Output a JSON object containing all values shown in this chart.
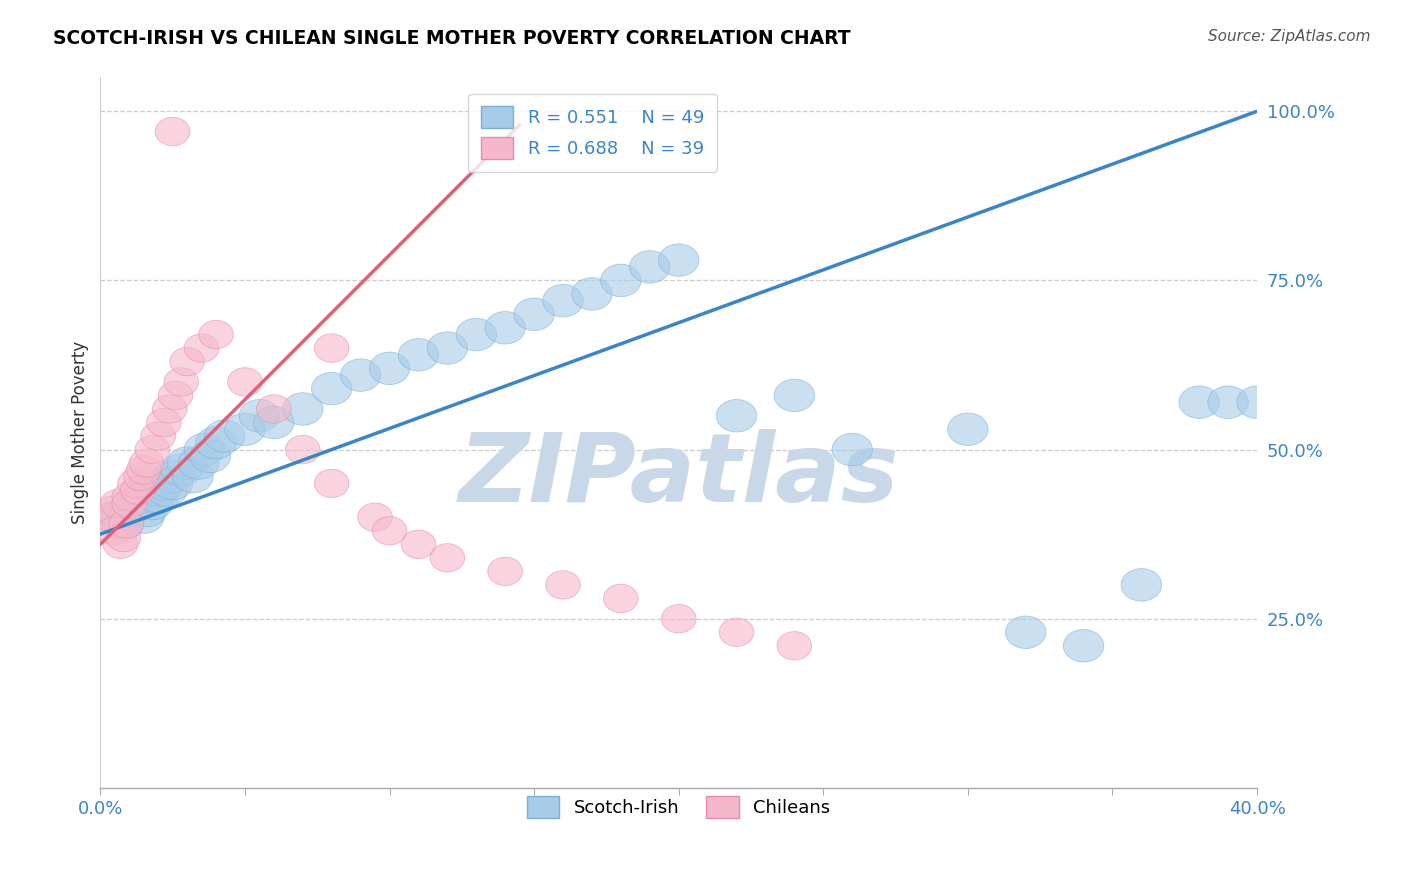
{
  "title": "SCOTCH-IRISH VS CHILEAN SINGLE MOTHER POVERTY CORRELATION CHART",
  "source": "Source: ZipAtlas.com",
  "ylabel": "Single Mother Poverty",
  "y_tick_labels": [
    "100.0%",
    "75.0%",
    "50.0%",
    "25.0%"
  ],
  "y_tick_positions": [
    1.0,
    0.75,
    0.5,
    0.25
  ],
  "legend_blue_r": "0.551",
  "legend_blue_n": "49",
  "legend_pink_r": "0.688",
  "legend_pink_n": "39",
  "blue_fill_color": "#a8cce8",
  "blue_edge_color": "#7ab0d8",
  "pink_fill_color": "#f5b8cb",
  "pink_edge_color": "#e88aa8",
  "blue_line_color": "#3a85c8",
  "pink_line_color": "#e0607a",
  "legend_color": "#3a85c8",
  "watermark_text": "ZIPatlas",
  "watermark_color": "#c8d8e8",
  "blue_line_x": [
    0.0,
    0.4
  ],
  "blue_line_y": [
    0.375,
    1.0
  ],
  "pink_line_x": [
    0.0,
    0.145
  ],
  "pink_line_y": [
    0.36,
    0.98
  ],
  "blue_x": [
    0.005,
    0.008,
    0.01,
    0.012,
    0.015,
    0.015,
    0.016,
    0.018,
    0.02,
    0.02,
    0.022,
    0.023,
    0.025,
    0.025,
    0.028,
    0.03,
    0.032,
    0.034,
    0.036,
    0.038,
    0.04,
    0.043,
    0.05,
    0.055,
    0.06,
    0.07,
    0.08,
    0.09,
    0.1,
    0.11,
    0.12,
    0.13,
    0.14,
    0.15,
    0.16,
    0.17,
    0.18,
    0.19,
    0.2,
    0.22,
    0.24,
    0.26,
    0.3,
    0.32,
    0.34,
    0.36,
    0.38,
    0.39,
    0.4
  ],
  "blue_y": [
    0.4,
    0.39,
    0.41,
    0.42,
    0.4,
    0.43,
    0.41,
    0.42,
    0.44,
    0.43,
    0.45,
    0.44,
    0.46,
    0.45,
    0.47,
    0.48,
    0.46,
    0.48,
    0.5,
    0.49,
    0.51,
    0.52,
    0.53,
    0.55,
    0.54,
    0.56,
    0.59,
    0.61,
    0.62,
    0.64,
    0.65,
    0.67,
    0.68,
    0.7,
    0.72,
    0.73,
    0.75,
    0.77,
    0.78,
    0.55,
    0.58,
    0.5,
    0.53,
    0.23,
    0.21,
    0.3,
    0.57,
    0.57,
    0.57
  ],
  "pink_x": [
    0.003,
    0.004,
    0.005,
    0.006,
    0.007,
    0.008,
    0.009,
    0.01,
    0.01,
    0.012,
    0.013,
    0.014,
    0.015,
    0.016,
    0.018,
    0.02,
    0.022,
    0.024,
    0.026,
    0.028,
    0.03,
    0.035,
    0.04,
    0.05,
    0.06,
    0.07,
    0.08,
    0.095,
    0.1,
    0.11,
    0.12,
    0.14,
    0.16,
    0.18,
    0.2,
    0.22,
    0.24,
    0.08,
    0.025
  ],
  "pink_y": [
    0.4,
    0.41,
    0.38,
    0.42,
    0.36,
    0.37,
    0.39,
    0.43,
    0.42,
    0.45,
    0.44,
    0.46,
    0.47,
    0.48,
    0.5,
    0.52,
    0.54,
    0.56,
    0.58,
    0.6,
    0.63,
    0.65,
    0.67,
    0.6,
    0.56,
    0.5,
    0.45,
    0.4,
    0.38,
    0.36,
    0.34,
    0.32,
    0.3,
    0.28,
    0.25,
    0.23,
    0.21,
    0.65,
    0.97
  ],
  "xlim": [
    0.0,
    0.4
  ],
  "ylim": [
    0.0,
    1.05
  ]
}
